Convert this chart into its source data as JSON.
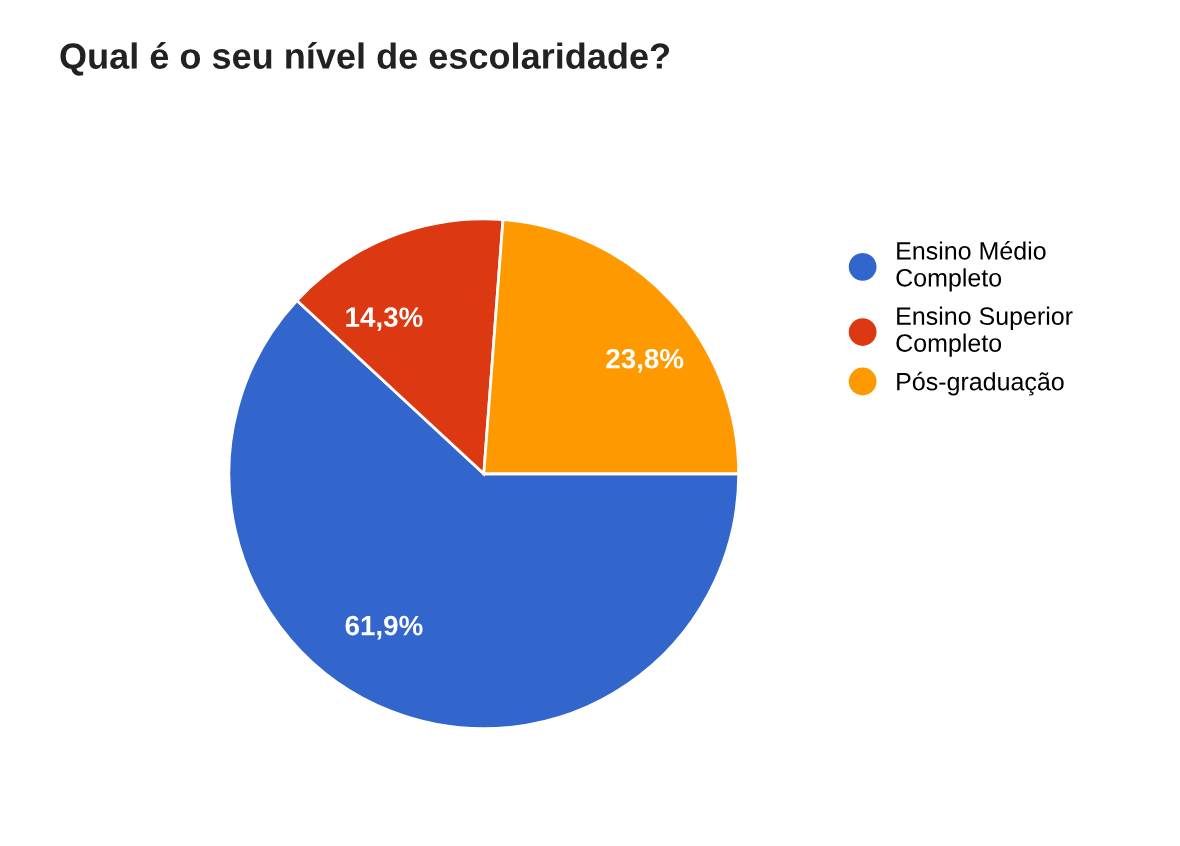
{
  "chart_data": {
    "type": "pie",
    "title": "Qual é o seu nível de escolaridade?",
    "categories": [
      "Ensino Médio\nCompleto",
      "Ensino Superior\nCompleto",
      "Pós-graduação"
    ],
    "values": [
      61.9,
      14.3,
      23.8
    ],
    "colors": [
      "#3366cc",
      "#dc3912",
      "#ff9900"
    ],
    "value_labels": [
      "61,9%",
      "14,3%",
      "23,8%"
    ],
    "legend": "right"
  }
}
